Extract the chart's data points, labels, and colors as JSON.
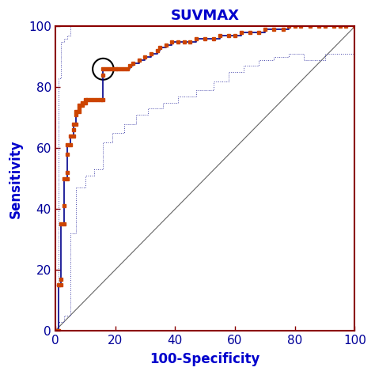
{
  "title": "SUVMAX",
  "xlabel": "100-Specificity",
  "ylabel": "Sensitivity",
  "title_color": "#0000CC",
  "xlabel_color": "#0000CC",
  "ylabel_color": "#0000CC",
  "tick_label_color": "#000099",
  "axis_color": "#8B0000",
  "background_color": "#ffffff",
  "xlim": [
    0,
    100
  ],
  "ylim": [
    0,
    100
  ],
  "xticks": [
    0,
    20,
    40,
    60,
    80,
    100
  ],
  "yticks": [
    0,
    20,
    40,
    60,
    80,
    100
  ],
  "roc_color": "#00008B",
  "marker_color": "#CC4400",
  "marker_facecolor": "#CC4400",
  "ci_color": "#4444AA",
  "diagonal_color": "#666666",
  "optimal_point": [
    16,
    86
  ],
  "roc_curve": [
    [
      0,
      0
    ],
    [
      1,
      0
    ],
    [
      1,
      15
    ],
    [
      2,
      15
    ],
    [
      2,
      17
    ],
    [
      2,
      35
    ],
    [
      3,
      35
    ],
    [
      3,
      41
    ],
    [
      3,
      50
    ],
    [
      4,
      50
    ],
    [
      4,
      52
    ],
    [
      4,
      58
    ],
    [
      4,
      61
    ],
    [
      5,
      61
    ],
    [
      5,
      64
    ],
    [
      6,
      64
    ],
    [
      6,
      66
    ],
    [
      6,
      68
    ],
    [
      7,
      68
    ],
    [
      7,
      71
    ],
    [
      7,
      72
    ],
    [
      8,
      72
    ],
    [
      8,
      73
    ],
    [
      8,
      74
    ],
    [
      9,
      74
    ],
    [
      9,
      75
    ],
    [
      10,
      75
    ],
    [
      10,
      76
    ],
    [
      11,
      76
    ],
    [
      12,
      76
    ],
    [
      13,
      76
    ],
    [
      14,
      76
    ],
    [
      15,
      76
    ],
    [
      16,
      76
    ],
    [
      16,
      84
    ],
    [
      16,
      86
    ],
    [
      17,
      86
    ],
    [
      18,
      86
    ],
    [
      19,
      86
    ],
    [
      20,
      86
    ],
    [
      21,
      86
    ],
    [
      22,
      86
    ],
    [
      23,
      86
    ],
    [
      24,
      86
    ],
    [
      25,
      87
    ],
    [
      26,
      88
    ],
    [
      28,
      89
    ],
    [
      30,
      90
    ],
    [
      32,
      91
    ],
    [
      34,
      92
    ],
    [
      35,
      93
    ],
    [
      37,
      94
    ],
    [
      39,
      95
    ],
    [
      41,
      95
    ],
    [
      43,
      95
    ],
    [
      45,
      95
    ],
    [
      47,
      96
    ],
    [
      50,
      96
    ],
    [
      53,
      96
    ],
    [
      55,
      97
    ],
    [
      58,
      97
    ],
    [
      60,
      97
    ],
    [
      62,
      98
    ],
    [
      65,
      98
    ],
    [
      68,
      98
    ],
    [
      70,
      99
    ],
    [
      73,
      99
    ],
    [
      76,
      99
    ],
    [
      78,
      100
    ],
    [
      80,
      100
    ],
    [
      82,
      100
    ],
    [
      85,
      100
    ],
    [
      88,
      100
    ],
    [
      90,
      100
    ],
    [
      93,
      100
    ],
    [
      95,
      100
    ],
    [
      97,
      100
    ],
    [
      100,
      100
    ]
  ],
  "ci_upper": [
    [
      0,
      0
    ],
    [
      0,
      15
    ],
    [
      1,
      15
    ],
    [
      1,
      83
    ],
    [
      2,
      83
    ],
    [
      2,
      95
    ],
    [
      3,
      95
    ],
    [
      3,
      96
    ],
    [
      4,
      96
    ],
    [
      4,
      97
    ],
    [
      5,
      97
    ],
    [
      5,
      100
    ],
    [
      7,
      100
    ],
    [
      100,
      100
    ]
  ],
  "ci_lower": [
    [
      0,
      0
    ],
    [
      1,
      0
    ],
    [
      1,
      3
    ],
    [
      3,
      3
    ],
    [
      3,
      5
    ],
    [
      5,
      5
    ],
    [
      5,
      32
    ],
    [
      7,
      32
    ],
    [
      7,
      47
    ],
    [
      10,
      47
    ],
    [
      10,
      51
    ],
    [
      13,
      51
    ],
    [
      13,
      53
    ],
    [
      16,
      53
    ],
    [
      16,
      62
    ],
    [
      19,
      62
    ],
    [
      19,
      65
    ],
    [
      23,
      65
    ],
    [
      23,
      68
    ],
    [
      27,
      68
    ],
    [
      27,
      71
    ],
    [
      31,
      71
    ],
    [
      31,
      73
    ],
    [
      36,
      73
    ],
    [
      36,
      75
    ],
    [
      41,
      75
    ],
    [
      41,
      77
    ],
    [
      47,
      77
    ],
    [
      47,
      79
    ],
    [
      53,
      79
    ],
    [
      53,
      82
    ],
    [
      58,
      82
    ],
    [
      58,
      85
    ],
    [
      63,
      85
    ],
    [
      63,
      87
    ],
    [
      68,
      87
    ],
    [
      68,
      89
    ],
    [
      73,
      89
    ],
    [
      73,
      90
    ],
    [
      78,
      90
    ],
    [
      78,
      91
    ],
    [
      83,
      91
    ],
    [
      83,
      89
    ],
    [
      90,
      89
    ],
    [
      90,
      91
    ],
    [
      100,
      91
    ]
  ]
}
